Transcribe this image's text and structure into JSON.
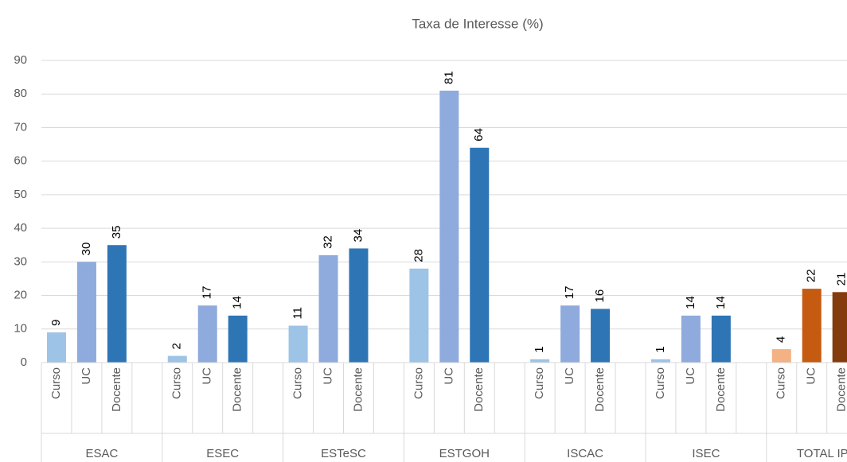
{
  "chart_data": {
    "type": "bar",
    "title": "Taxa de Interesse (%)",
    "groups": [
      {
        "name": "ESAC",
        "bars": [
          {
            "label": "Curso",
            "value": 9,
            "color": "#9dc3e6"
          },
          {
            "label": "UC",
            "value": 30,
            "color": "#8faadc"
          },
          {
            "label": "Docente",
            "value": 35,
            "color": "#2e75b6"
          }
        ]
      },
      {
        "name": "ESEC",
        "bars": [
          {
            "label": "Curso",
            "value": 2,
            "color": "#9dc3e6"
          },
          {
            "label": "UC",
            "value": 17,
            "color": "#8faadc"
          },
          {
            "label": "Docente",
            "value": 14,
            "color": "#2e75b6"
          }
        ]
      },
      {
        "name": "ESTeSC",
        "bars": [
          {
            "label": "Curso",
            "value": 11,
            "color": "#9dc3e6"
          },
          {
            "label": "UC",
            "value": 32,
            "color": "#8faadc"
          },
          {
            "label": "Docente",
            "value": 34,
            "color": "#2e75b6"
          }
        ]
      },
      {
        "name": "ESTGOH",
        "bars": [
          {
            "label": "Curso",
            "value": 28,
            "color": "#9dc3e6"
          },
          {
            "label": "UC",
            "value": 81,
            "color": "#8faadc"
          },
          {
            "label": "Docente",
            "value": 64,
            "color": "#2e75b6"
          }
        ]
      },
      {
        "name": "ISCAC",
        "bars": [
          {
            "label": "Curso",
            "value": 1,
            "color": "#9dc3e6"
          },
          {
            "label": "UC",
            "value": 17,
            "color": "#8faadc"
          },
          {
            "label": "Docente",
            "value": 16,
            "color": "#2e75b6"
          }
        ]
      },
      {
        "name": "ISEC",
        "bars": [
          {
            "label": "Curso",
            "value": 1,
            "color": "#9dc3e6"
          },
          {
            "label": "UC",
            "value": 14,
            "color": "#8faadc"
          },
          {
            "label": "Docente",
            "value": 14,
            "color": "#2e75b6"
          }
        ]
      },
      {
        "name": "TOTAL IPC",
        "bars": [
          {
            "label": "Curso",
            "value": 4,
            "color": "#f4b183"
          },
          {
            "label": "UC",
            "value": 22,
            "color": "#c55a11"
          },
          {
            "label": "Docente",
            "value": 21,
            "color": "#843c0c"
          }
        ]
      }
    ],
    "ylim": [
      0,
      90
    ],
    "yticks": [
      0,
      10,
      20,
      30,
      40,
      50,
      60,
      70,
      80,
      90
    ],
    "grid": true
  }
}
